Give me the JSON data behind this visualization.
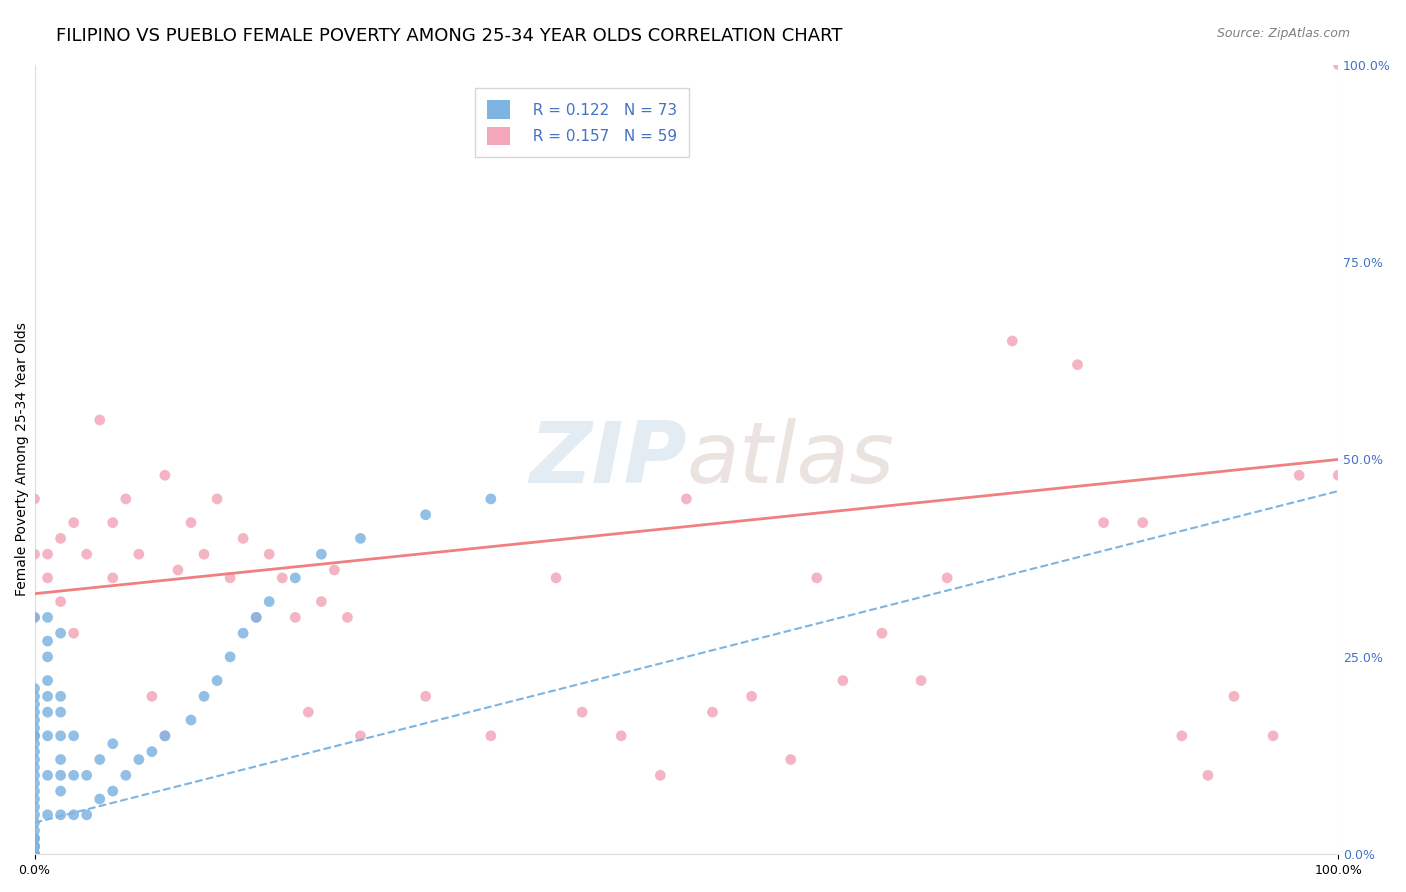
{
  "title": "FILIPINO VS PUEBLO FEMALE POVERTY AMONG 25-34 YEAR OLDS CORRELATION CHART",
  "source": "Source: ZipAtlas.com",
  "xlabel": "",
  "ylabel": "Female Poverty Among 25-34 Year Olds",
  "xlim": [
    0,
    1.0
  ],
  "ylim": [
    0,
    1.0
  ],
  "xtick_labels": [
    "0.0%",
    "100.0%"
  ],
  "ytick_labels": [
    "0.0%",
    "25.0%",
    "50.0%",
    "75.0%",
    "100.0%"
  ],
  "ytick_positions": [
    0.0,
    0.25,
    0.5,
    0.75,
    1.0
  ],
  "xtick_positions": [
    0.0,
    1.0
  ],
  "legend_r1": "R = 0.122",
  "legend_n1": "N = 73",
  "legend_r2": "R = 0.157",
  "legend_n2": "N = 59",
  "color_filipino": "#7EB4E2",
  "color_pueblo": "#F4A7B9",
  "color_trendline_filipino": "#7EB4E2",
  "color_trendline_pueblo": "#F08080",
  "background_color": "#ffffff",
  "watermark": "ZIPatlas",
  "watermark_color_zip": "#c8d8e8",
  "watermark_color_atlas": "#d8c8c0",
  "filipino_x": [
    0.0,
    0.0,
    0.0,
    0.0,
    0.0,
    0.0,
    0.0,
    0.0,
    0.0,
    0.0,
    0.0,
    0.0,
    0.0,
    0.0,
    0.0,
    0.0,
    0.0,
    0.0,
    0.0,
    0.0,
    0.0,
    0.0,
    0.0,
    0.0,
    0.0,
    0.0,
    0.0,
    0.0,
    0.0,
    0.0,
    0.0,
    0.01,
    0.01,
    0.01,
    0.01,
    0.01,
    0.01,
    0.01,
    0.01,
    0.01,
    0.02,
    0.02,
    0.02,
    0.02,
    0.02,
    0.02,
    0.02,
    0.02,
    0.03,
    0.03,
    0.03,
    0.04,
    0.04,
    0.05,
    0.05,
    0.06,
    0.06,
    0.07,
    0.08,
    0.09,
    0.1,
    0.12,
    0.13,
    0.14,
    0.15,
    0.16,
    0.17,
    0.18,
    0.2,
    0.22,
    0.25,
    0.3,
    0.35
  ],
  "filipino_y": [
    0.0,
    0.0,
    0.0,
    0.0,
    0.0,
    0.01,
    0.01,
    0.01,
    0.02,
    0.02,
    0.03,
    0.04,
    0.05,
    0.06,
    0.07,
    0.08,
    0.09,
    0.1,
    0.11,
    0.12,
    0.13,
    0.14,
    0.15,
    0.15,
    0.16,
    0.17,
    0.18,
    0.19,
    0.2,
    0.21,
    0.3,
    0.05,
    0.1,
    0.15,
    0.18,
    0.2,
    0.22,
    0.25,
    0.27,
    0.3,
    0.05,
    0.08,
    0.1,
    0.12,
    0.15,
    0.18,
    0.2,
    0.28,
    0.05,
    0.1,
    0.15,
    0.05,
    0.1,
    0.07,
    0.12,
    0.08,
    0.14,
    0.1,
    0.12,
    0.13,
    0.15,
    0.17,
    0.2,
    0.22,
    0.25,
    0.28,
    0.3,
    0.32,
    0.35,
    0.38,
    0.4,
    0.43,
    0.45
  ],
  "pueblo_x": [
    0.0,
    0.0,
    0.0,
    0.01,
    0.01,
    0.02,
    0.02,
    0.03,
    0.03,
    0.04,
    0.05,
    0.06,
    0.06,
    0.07,
    0.08,
    0.09,
    0.1,
    0.1,
    0.11,
    0.12,
    0.13,
    0.14,
    0.15,
    0.16,
    0.17,
    0.18,
    0.19,
    0.2,
    0.21,
    0.22,
    0.23,
    0.24,
    0.25,
    0.3,
    0.35,
    0.4,
    0.42,
    0.45,
    0.48,
    0.5,
    0.52,
    0.55,
    0.58,
    0.6,
    0.62,
    0.65,
    0.68,
    0.7,
    0.75,
    0.8,
    0.82,
    0.85,
    0.88,
    0.9,
    0.92,
    0.95,
    0.97,
    1.0,
    1.0
  ],
  "pueblo_y": [
    0.38,
    0.45,
    0.3,
    0.35,
    0.38,
    0.32,
    0.4,
    0.28,
    0.42,
    0.38,
    0.55,
    0.35,
    0.42,
    0.45,
    0.38,
    0.2,
    0.15,
    0.48,
    0.36,
    0.42,
    0.38,
    0.45,
    0.35,
    0.4,
    0.3,
    0.38,
    0.35,
    0.3,
    0.18,
    0.32,
    0.36,
    0.3,
    0.15,
    0.2,
    0.15,
    0.35,
    0.18,
    0.15,
    0.1,
    0.45,
    0.18,
    0.2,
    0.12,
    0.35,
    0.22,
    0.28,
    0.22,
    0.35,
    0.65,
    0.62,
    0.42,
    0.42,
    0.15,
    0.1,
    0.2,
    0.15,
    0.48,
    0.48,
    1.0
  ],
  "filipino_trend_x": [
    0.0,
    1.0
  ],
  "filipino_trend_y_start": 0.04,
  "filipino_trend_y_end": 0.46,
  "pueblo_trend_x": [
    0.0,
    1.0
  ],
  "pueblo_trend_y_start": 0.33,
  "pueblo_trend_y_end": 0.5,
  "grid_color": "#dddddd",
  "title_fontsize": 13,
  "axis_label_fontsize": 10,
  "tick_label_fontsize": 9,
  "legend_fontsize": 11,
  "source_fontsize": 9
}
